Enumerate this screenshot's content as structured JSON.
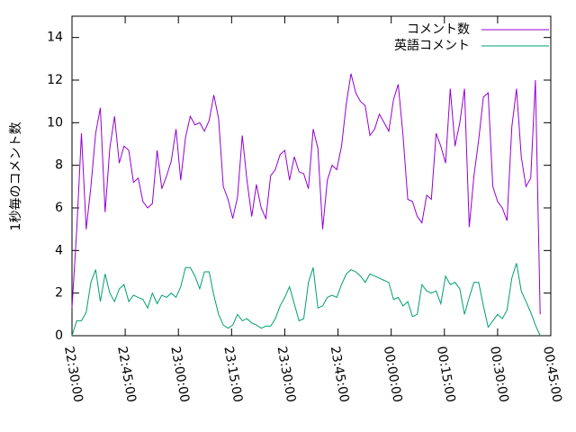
{
  "chart_data": {
    "type": "line",
    "ylabel": "1秒毎のコメント数",
    "x": [
      "22:30:00",
      "22:31:20",
      "22:32:40",
      "22:34:00",
      "22:35:20",
      "22:36:40",
      "22:38:00",
      "22:39:20",
      "22:40:40",
      "22:42:00",
      "22:43:20",
      "22:44:40",
      "22:46:00",
      "22:47:20",
      "22:48:40",
      "22:50:00",
      "22:51:20",
      "22:52:40",
      "22:54:00",
      "22:55:20",
      "22:56:40",
      "22:58:00",
      "22:59:20",
      "23:00:40",
      "23:02:00",
      "23:03:20",
      "23:04:40",
      "23:06:00",
      "23:07:20",
      "23:08:40",
      "23:10:00",
      "23:11:20",
      "23:12:40",
      "23:14:00",
      "23:15:20",
      "23:16:40",
      "23:18:00",
      "23:19:20",
      "23:20:40",
      "23:22:00",
      "23:23:20",
      "23:24:40",
      "23:26:00",
      "23:27:20",
      "23:28:40",
      "23:30:00",
      "23:31:20",
      "23:32:40",
      "23:34:00",
      "23:35:20",
      "23:36:40",
      "23:38:00",
      "23:39:20",
      "23:40:40",
      "23:42:00",
      "23:43:20",
      "23:44:40",
      "23:46:00",
      "23:47:20",
      "23:48:40",
      "23:50:00",
      "23:51:20",
      "23:52:40",
      "23:54:00",
      "23:55:20",
      "23:56:40",
      "23:58:00",
      "23:59:20",
      "00:00:40",
      "00:02:00",
      "00:03:20",
      "00:04:40",
      "00:06:00",
      "00:07:20",
      "00:08:40",
      "00:10:00",
      "00:11:20",
      "00:12:40",
      "00:14:00",
      "00:15:20",
      "00:16:40",
      "00:18:00",
      "00:19:20",
      "00:20:40",
      "00:22:00",
      "00:23:20",
      "00:24:40",
      "00:26:00",
      "00:27:20",
      "00:28:40",
      "00:30:00",
      "00:31:20",
      "00:32:40",
      "00:34:00",
      "00:35:20",
      "00:36:40",
      "00:38:00",
      "00:39:20",
      "00:40:40",
      "00:42:00"
    ],
    "series": [
      {
        "name": "コメント数",
        "color": "#9400d3",
        "values": [
          1.3,
          5,
          9.5,
          5,
          7,
          9.5,
          10.7,
          5.8,
          8.8,
          10.3,
          8.1,
          8.9,
          8.7,
          7.2,
          7.4,
          6.3,
          6.0,
          6.2,
          8.7,
          6.9,
          7.5,
          8.2,
          9.7,
          7.3,
          9.3,
          10.3,
          9.9,
          10.0,
          9.6,
          10.1,
          11.3,
          10.2,
          7.0,
          6.4,
          5.5,
          6.5,
          9.4,
          7.3,
          5.6,
          7.1,
          6.0,
          5.5,
          7.5,
          7.8,
          8.5,
          8.7,
          7.3,
          8.4,
          7.7,
          7.6,
          6.9,
          9.7,
          8.8,
          5.0,
          7.3,
          8.0,
          7.8,
          8.9,
          10.9,
          12.3,
          11.4,
          11.0,
          10.8,
          9.4,
          9.7,
          10.4,
          10.0,
          9.6,
          11.1,
          11.8,
          9.4,
          6.4,
          6.3,
          5.6,
          5.3,
          6.6,
          6.4,
          9.5,
          8.9,
          8.1,
          11.6,
          8.9,
          10.0,
          11.6,
          5.1,
          7.5,
          9.2,
          11.2,
          11.4,
          7.0,
          6.3,
          6.0,
          5.4,
          9.8,
          11.6,
          8.4,
          7.0,
          7.4,
          12.0,
          1.0
        ]
      },
      {
        "name": "英語コメント",
        "color": "#009e73",
        "values": [
          0.0,
          0.7,
          0.7,
          1.1,
          2.5,
          3.1,
          1.6,
          2.9,
          2.0,
          1.6,
          2.2,
          2.4,
          1.6,
          1.9,
          1.8,
          1.7,
          1.3,
          2.0,
          1.5,
          1.9,
          1.8,
          2.0,
          1.8,
          2.3,
          3.2,
          3.2,
          2.8,
          2.2,
          3.0,
          3.0,
          1.9,
          1.0,
          0.5,
          0.35,
          0.5,
          1.0,
          0.7,
          0.8,
          0.6,
          0.5,
          0.35,
          0.45,
          0.45,
          0.8,
          1.4,
          1.8,
          2.3,
          1.5,
          0.7,
          0.8,
          2.5,
          3.2,
          1.3,
          1.4,
          1.8,
          1.9,
          1.8,
          2.4,
          2.9,
          3.1,
          3.0,
          2.8,
          2.5,
          2.9,
          2.8,
          2.7,
          2.6,
          2.5,
          1.7,
          1.8,
          1.4,
          1.6,
          0.9,
          1.0,
          2.4,
          2.1,
          2.0,
          2.1,
          1.5,
          2.8,
          2.4,
          2.5,
          2.2,
          1.0,
          1.8,
          2.5,
          2.5,
          1.4,
          0.4,
          0.7,
          1.0,
          0.8,
          1.2,
          2.7,
          3.4,
          2.1,
          1.6,
          1.1,
          0.5,
          0.0
        ]
      }
    ],
    "xlim": [
      "22:30:00",
      "00:45:00"
    ],
    "xticks": [
      "22:30:00",
      "22:45:00",
      "23:00:00",
      "23:15:00",
      "23:30:00",
      "23:45:00",
      "00:00:00",
      "00:15:00",
      "00:30:00",
      "00:45:00"
    ],
    "ylim": [
      0,
      15
    ],
    "yticks": [
      0,
      2,
      4,
      6,
      8,
      10,
      12,
      14
    ],
    "legend": "top-right"
  }
}
